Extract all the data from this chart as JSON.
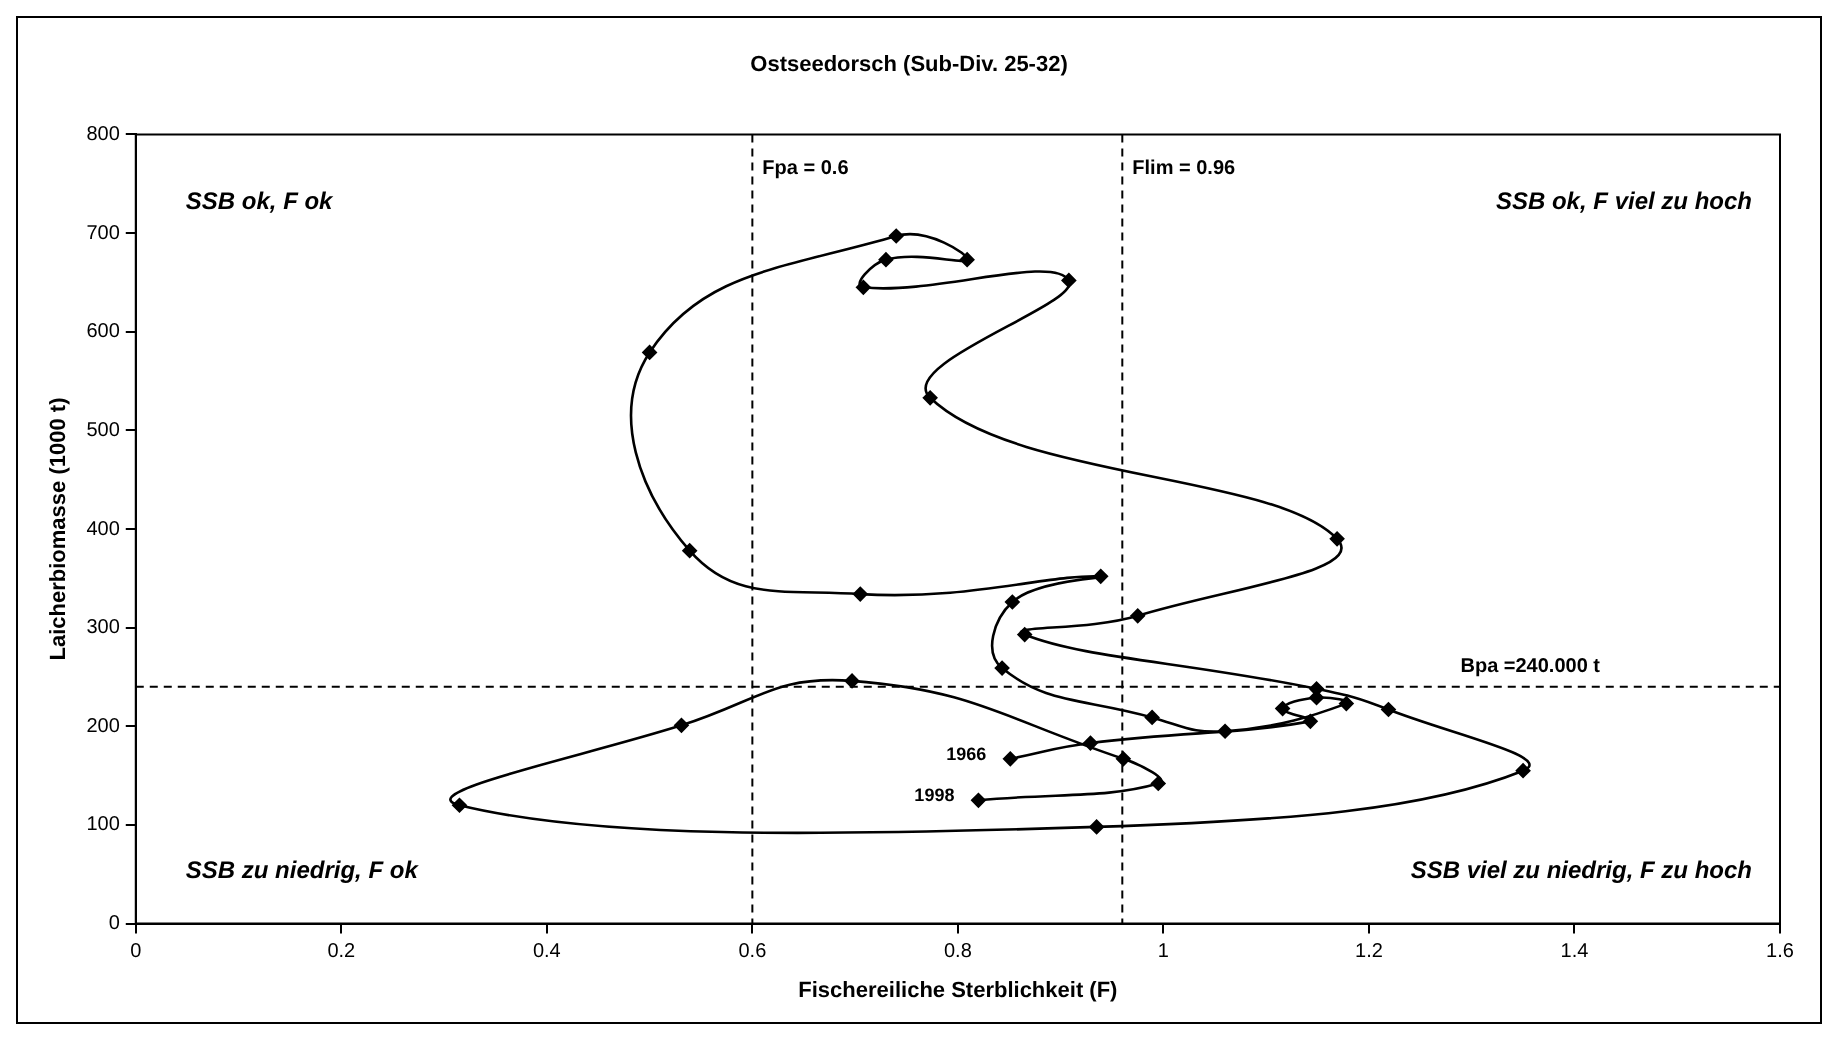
{
  "chart_data": {
    "type": "line",
    "title": "Ostseedorsch (Sub-Div. 25-32)",
    "xlabel": "Fischereiliche Sterblichkeit (F)",
    "ylabel": "Laicherbiomasse (1000 t)",
    "xlim": [
      0,
      1.6
    ],
    "xticks": [
      0,
      0.2,
      0.4,
      0.6,
      0.8,
      1,
      1.2,
      1.4,
      1.6
    ],
    "ylim": [
      0,
      800
    ],
    "yticks": [
      0,
      100,
      200,
      300,
      400,
      500,
      600,
      700,
      800
    ],
    "grid": false,
    "legend": false,
    "marker": "diamond",
    "line_style": "solid",
    "series": [
      {
        "color": "#000000",
        "x": [
          0.851,
          0.929,
          1.143,
          1.116,
          1.149,
          1.178,
          1.06,
          0.989,
          0.843,
          0.853,
          0.939,
          0.705,
          0.539,
          0.5,
          0.74,
          0.809,
          0.73,
          0.708,
          0.908,
          0.773,
          1.169,
          0.975,
          0.865,
          1.149,
          1.219,
          1.35,
          0.935,
          0.315,
          0.531,
          0.697,
          0.961,
          0.995,
          0.82
        ],
        "values": [
          167,
          183,
          205,
          218,
          229,
          223,
          195,
          209,
          259,
          326,
          352,
          334,
          378,
          579,
          697,
          673,
          673,
          645,
          652,
          533,
          390,
          312,
          293,
          238,
          217,
          155,
          98,
          120,
          201,
          246,
          167,
          142,
          125
        ]
      }
    ],
    "ref_lines": [
      {
        "axis": "x",
        "value": 0.6,
        "label": "Fpa = 0.6",
        "line_style": "dashed",
        "color": "#000000"
      },
      {
        "axis": "x",
        "value": 0.96,
        "label": "Flim = 0.96",
        "line_style": "dashed",
        "color": "#000000"
      },
      {
        "axis": "y",
        "value": 240,
        "label": "Bpa =240.000 t",
        "line_style": "dashed",
        "color": "#000000"
      }
    ],
    "annotations": [
      "SSB ok, F ok",
      "SSB ok, F viel zu hoch",
      "SSB zu niedrig, F ok",
      "SSB viel zu niedrig, F zu hoch",
      {
        "text": "1966",
        "x": 0.851,
        "y": 167
      },
      {
        "text": "1998",
        "x": 0.82,
        "y": 125
      }
    ]
  }
}
